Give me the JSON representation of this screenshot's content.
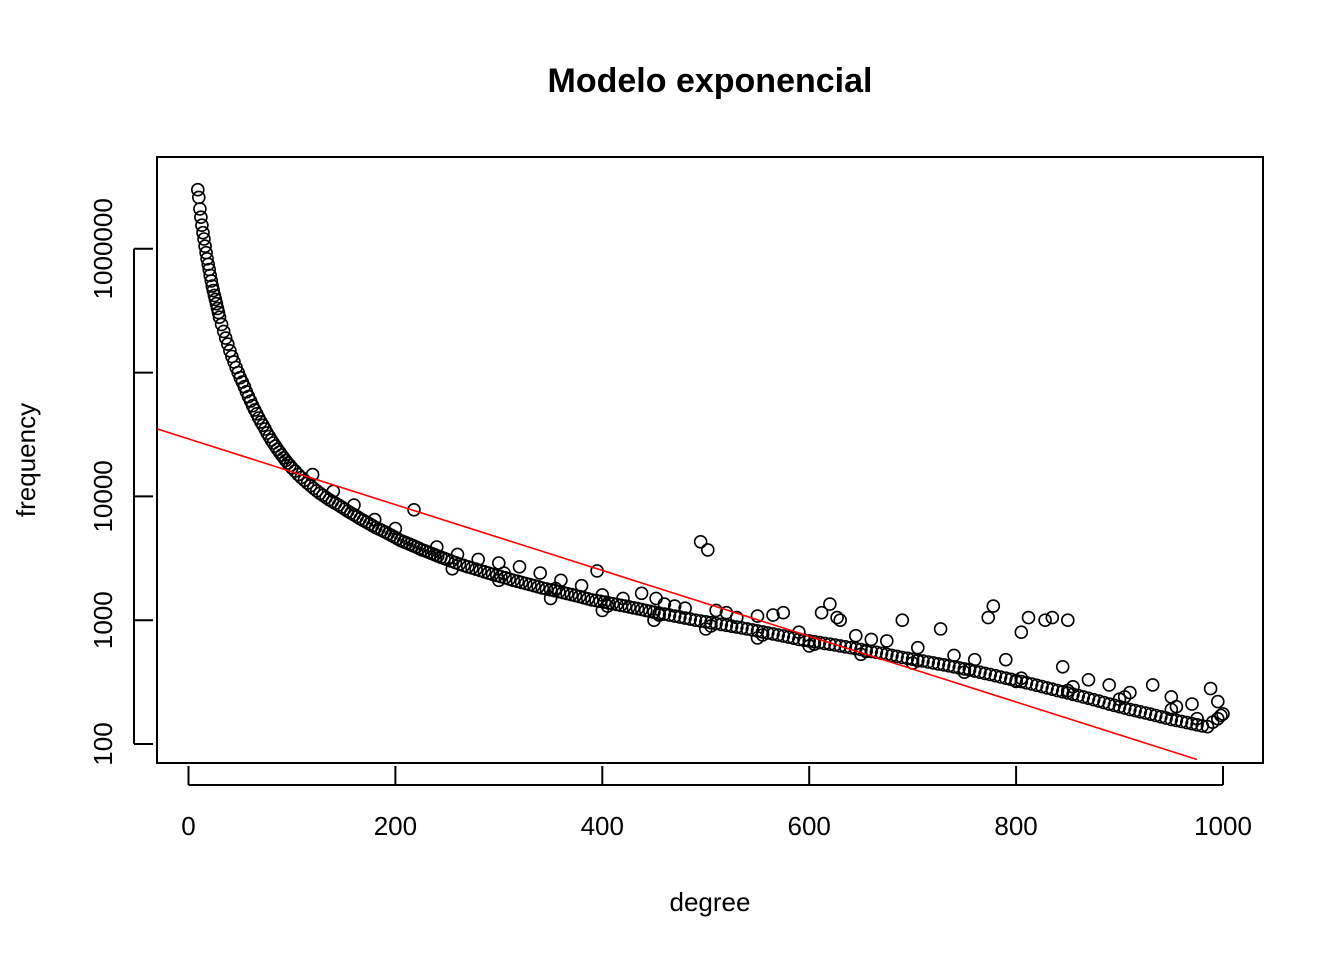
{
  "chart_data": {
    "type": "scatter",
    "title": "Modelo exponencial",
    "xlabel": "degree",
    "ylabel": "frequency",
    "x_ticks": [
      "0",
      "200",
      "400",
      "600",
      "800",
      "1000"
    ],
    "y_ticks": [
      "100",
      "1000",
      "10000",
      "1000000"
    ],
    "y_scale": "log",
    "xlim": [
      -30,
      1040
    ],
    "ylim": [
      75,
      5000000
    ],
    "grid": false,
    "point_style": "open-circle",
    "point_color": "#000000",
    "fit_line_color": "#ff0000",
    "fit_line": {
      "type": "exponential",
      "points": [
        [
          -30,
          35000
        ],
        [
          975,
          75
        ]
      ]
    },
    "points": [
      [
        9,
        3000000
      ],
      [
        10,
        2600000
      ],
      [
        11,
        2100000
      ],
      [
        12,
        1800000
      ],
      [
        13,
        1550000
      ],
      [
        14,
        1350000
      ],
      [
        15,
        1200000
      ],
      [
        16,
        1050000
      ],
      [
        17,
        930000
      ],
      [
        18,
        830000
      ],
      [
        19,
        750000
      ],
      [
        20,
        680000
      ],
      [
        21,
        610000
      ],
      [
        22,
        550000
      ],
      [
        23,
        500000
      ],
      [
        24,
        460000
      ],
      [
        25,
        420000
      ],
      [
        26,
        390000
      ],
      [
        27,
        360000
      ],
      [
        28,
        330000
      ],
      [
        29,
        305000
      ],
      [
        30,
        280000
      ],
      [
        32,
        245000
      ],
      [
        34,
        215000
      ],
      [
        36,
        190000
      ],
      [
        38,
        170000
      ],
      [
        40,
        150000
      ],
      [
        42,
        135000
      ],
      [
        44,
        122000
      ],
      [
        46,
        110000
      ],
      [
        48,
        100000
      ],
      [
        50,
        91000
      ],
      [
        52,
        84000
      ],
      [
        54,
        77000
      ],
      [
        56,
        70000
      ],
      [
        58,
        64000
      ],
      [
        60,
        59000
      ],
      [
        62,
        54000
      ],
      [
        64,
        50000
      ],
      [
        66,
        46500
      ],
      [
        68,
        43000
      ],
      [
        70,
        40000
      ],
      [
        72,
        37500
      ],
      [
        74,
        35000
      ],
      [
        76,
        32500
      ],
      [
        78,
        30500
      ],
      [
        80,
        28500
      ],
      [
        82,
        27000
      ],
      [
        84,
        25500
      ],
      [
        86,
        24000
      ],
      [
        88,
        22800
      ],
      [
        90,
        21600
      ],
      [
        92,
        20500
      ],
      [
        94,
        19500
      ],
      [
        96,
        18600
      ],
      [
        98,
        17800
      ],
      [
        100,
        17000
      ],
      [
        103,
        16000
      ],
      [
        106,
        15000
      ],
      [
        109,
        14200
      ],
      [
        112,
        13500
      ],
      [
        115,
        12800
      ],
      [
        118,
        12200
      ],
      [
        121,
        11600
      ],
      [
        124,
        11100
      ],
      [
        127,
        10600
      ],
      [
        130,
        10200
      ],
      [
        133,
        9800
      ],
      [
        136,
        9400
      ],
      [
        139,
        9100
      ],
      [
        142,
        8800
      ],
      [
        145,
        8500
      ],
      [
        148,
        8200
      ],
      [
        151,
        7900
      ],
      [
        154,
        7600
      ],
      [
        157,
        7350
      ],
      [
        160,
        7100
      ],
      [
        163,
        6850
      ],
      [
        166,
        6600
      ],
      [
        169,
        6400
      ],
      [
        172,
        6200
      ],
      [
        175,
        6000
      ],
      [
        178,
        5800
      ],
      [
        181,
        5600
      ],
      [
        184,
        5450
      ],
      [
        187,
        5300
      ],
      [
        190,
        5150
      ],
      [
        193,
        5000
      ],
      [
        196,
        4850
      ],
      [
        199,
        4700
      ],
      [
        202,
        4550
      ],
      [
        205,
        4400
      ],
      [
        208,
        4300
      ],
      [
        211,
        4200
      ],
      [
        214,
        4100
      ],
      [
        217,
        4000
      ],
      [
        220,
        3900
      ],
      [
        223,
        3800
      ],
      [
        226,
        3700
      ],
      [
        229,
        3620
      ],
      [
        232,
        3540
      ],
      [
        235,
        3460
      ],
      [
        238,
        3380
      ],
      [
        241,
        3300
      ],
      [
        244,
        3230
      ],
      [
        247,
        3160
      ],
      [
        250,
        3090
      ],
      [
        254,
        3000
      ],
      [
        258,
        2920
      ],
      [
        262,
        2840
      ],
      [
        266,
        2770
      ],
      [
        270,
        2700
      ],
      [
        274,
        2640
      ],
      [
        278,
        2580
      ],
      [
        282,
        2520
      ],
      [
        286,
        2460
      ],
      [
        290,
        2400
      ],
      [
        294,
        2350
      ],
      [
        298,
        2300
      ],
      [
        302,
        2250
      ],
      [
        306,
        2200
      ],
      [
        310,
        2150
      ],
      [
        314,
        2100
      ],
      [
        318,
        2060
      ],
      [
        322,
        2020
      ],
      [
        326,
        1980
      ],
      [
        330,
        1940
      ],
      [
        334,
        1900
      ],
      [
        338,
        1860
      ],
      [
        342,
        1820
      ],
      [
        346,
        1790
      ],
      [
        350,
        1760
      ],
      [
        354,
        1730
      ],
      [
        358,
        1700
      ],
      [
        362,
        1670
      ],
      [
        366,
        1640
      ],
      [
        370,
        1610
      ],
      [
        374,
        1580
      ],
      [
        378,
        1550
      ],
      [
        382,
        1520
      ],
      [
        386,
        1490
      ],
      [
        390,
        1460
      ],
      [
        394,
        1440
      ],
      [
        398,
        1420
      ],
      [
        402,
        1400
      ],
      [
        406,
        1380
      ],
      [
        410,
        1360
      ],
      [
        414,
        1340
      ],
      [
        418,
        1320
      ],
      [
        422,
        1300
      ],
      [
        426,
        1280
      ],
      [
        430,
        1260
      ],
      [
        434,
        1240
      ],
      [
        438,
        1220
      ],
      [
        442,
        1200
      ],
      [
        446,
        1180
      ],
      [
        450,
        1160
      ],
      [
        455,
        1140
      ],
      [
        460,
        1120
      ],
      [
        465,
        1100
      ],
      [
        470,
        1080
      ],
      [
        475,
        1060
      ],
      [
        480,
        1040
      ],
      [
        485,
        1020
      ],
      [
        490,
        1000
      ],
      [
        495,
        985
      ],
      [
        500,
        970
      ],
      [
        505,
        955
      ],
      [
        510,
        940
      ],
      [
        515,
        925
      ],
      [
        520,
        910
      ],
      [
        525,
        895
      ],
      [
        530,
        880
      ],
      [
        535,
        865
      ],
      [
        540,
        850
      ],
      [
        545,
        835
      ],
      [
        550,
        820
      ],
      [
        555,
        805
      ],
      [
        560,
        790
      ],
      [
        565,
        775
      ],
      [
        570,
        760
      ],
      [
        575,
        745
      ],
      [
        580,
        730
      ],
      [
        585,
        715
      ],
      [
        590,
        700
      ],
      [
        595,
        690
      ],
      [
        600,
        680
      ],
      [
        605,
        670
      ],
      [
        610,
        660
      ],
      [
        615,
        650
      ],
      [
        620,
        640
      ],
      [
        625,
        630
      ],
      [
        630,
        620
      ],
      [
        635,
        610
      ],
      [
        640,
        600
      ],
      [
        645,
        590
      ],
      [
        650,
        580
      ],
      [
        655,
        570
      ],
      [
        660,
        560
      ],
      [
        665,
        550
      ],
      [
        670,
        540
      ],
      [
        675,
        530
      ],
      [
        680,
        520
      ],
      [
        685,
        510
      ],
      [
        690,
        500
      ],
      [
        695,
        492
      ],
      [
        700,
        484
      ],
      [
        705,
        476
      ],
      [
        710,
        468
      ],
      [
        715,
        460
      ],
      [
        720,
        452
      ],
      [
        725,
        444
      ],
      [
        730,
        436
      ],
      [
        735,
        428
      ],
      [
        740,
        420
      ],
      [
        745,
        412
      ],
      [
        750,
        404
      ],
      [
        755,
        396
      ],
      [
        760,
        388
      ],
      [
        765,
        380
      ],
      [
        770,
        372
      ],
      [
        775,
        364
      ],
      [
        780,
        356
      ],
      [
        785,
        348
      ],
      [
        790,
        340
      ],
      [
        795,
        333
      ],
      [
        800,
        326
      ],
      [
        805,
        319
      ],
      [
        810,
        312
      ],
      [
        815,
        305
      ],
      [
        820,
        298
      ],
      [
        825,
        291
      ],
      [
        830,
        284
      ],
      [
        835,
        277
      ],
      [
        840,
        270
      ],
      [
        845,
        264
      ],
      [
        850,
        258
      ],
      [
        855,
        252
      ],
      [
        860,
        246
      ],
      [
        865,
        240
      ],
      [
        870,
        234
      ],
      [
        875,
        228
      ],
      [
        880,
        222
      ],
      [
        885,
        216
      ],
      [
        890,
        210
      ],
      [
        895,
        205
      ],
      [
        900,
        200
      ],
      [
        905,
        195
      ],
      [
        910,
        190
      ],
      [
        915,
        186
      ],
      [
        920,
        182
      ],
      [
        925,
        178
      ],
      [
        930,
        174
      ],
      [
        935,
        170
      ],
      [
        940,
        166
      ],
      [
        945,
        162
      ],
      [
        950,
        158
      ],
      [
        955,
        155
      ],
      [
        960,
        152
      ],
      [
        965,
        149
      ],
      [
        970,
        146
      ],
      [
        975,
        143
      ],
      [
        980,
        140
      ],
      [
        985,
        138
      ],
      [
        990,
        150
      ],
      [
        995,
        160
      ],
      [
        998,
        170
      ],
      [
        1000,
        175
      ],
      [
        120,
        15000
      ],
      [
        140,
        11000
      ],
      [
        160,
        8500
      ],
      [
        180,
        6500
      ],
      [
        200,
        5500
      ],
      [
        218,
        7800
      ],
      [
        240,
        3900
      ],
      [
        260,
        3400
      ],
      [
        280,
        3100
      ],
      [
        300,
        2900
      ],
      [
        320,
        2700
      ],
      [
        340,
        2400
      ],
      [
        360,
        2100
      ],
      [
        380,
        1900
      ],
      [
        395,
        2500
      ],
      [
        400,
        1600
      ],
      [
        420,
        1500
      ],
      [
        438,
        1650
      ],
      [
        452,
        1500
      ],
      [
        460,
        1350
      ],
      [
        470,
        1300
      ],
      [
        480,
        1250
      ],
      [
        495,
        4300
      ],
      [
        502,
        3700
      ],
      [
        510,
        1200
      ],
      [
        520,
        1150
      ],
      [
        530,
        1050
      ],
      [
        550,
        1080
      ],
      [
        565,
        1100
      ],
      [
        575,
        1150
      ],
      [
        590,
        800
      ],
      [
        612,
        1150
      ],
      [
        620,
        1350
      ],
      [
        627,
        1050
      ],
      [
        630,
        1000
      ],
      [
        645,
        750
      ],
      [
        660,
        700
      ],
      [
        675,
        680
      ],
      [
        690,
        1000
      ],
      [
        705,
        600
      ],
      [
        727,
        850
      ],
      [
        740,
        520
      ],
      [
        760,
        480
      ],
      [
        773,
        1050
      ],
      [
        778,
        1300
      ],
      [
        790,
        480
      ],
      [
        805,
        800
      ],
      [
        812,
        1050
      ],
      [
        828,
        1000
      ],
      [
        835,
        1050
      ],
      [
        845,
        420
      ],
      [
        850,
        1000
      ],
      [
        870,
        330
      ],
      [
        890,
        300
      ],
      [
        910,
        260
      ],
      [
        932,
        300
      ],
      [
        950,
        240
      ],
      [
        970,
        210
      ],
      [
        988,
        280
      ],
      [
        995,
        220
      ],
      [
        300,
        2100
      ],
      [
        350,
        1500
      ],
      [
        400,
        1200
      ],
      [
        450,
        1000
      ],
      [
        500,
        850
      ],
      [
        550,
        720
      ],
      [
        600,
        620
      ],
      [
        650,
        530
      ],
      [
        700,
        450
      ],
      [
        750,
        380
      ],
      [
        800,
        320
      ],
      [
        850,
        270
      ],
      [
        900,
        230
      ],
      [
        950,
        190
      ],
      [
        975,
        160
      ],
      [
        255,
        2600
      ],
      [
        305,
        2400
      ],
      [
        355,
        1800
      ],
      [
        405,
        1300
      ],
      [
        455,
        1100
      ],
      [
        505,
        900
      ],
      [
        555,
        760
      ],
      [
        605,
        640
      ],
      [
        655,
        560
      ],
      [
        705,
        470
      ],
      [
        755,
        400
      ],
      [
        805,
        340
      ],
      [
        855,
        290
      ],
      [
        905,
        240
      ],
      [
        955,
        200
      ]
    ]
  }
}
